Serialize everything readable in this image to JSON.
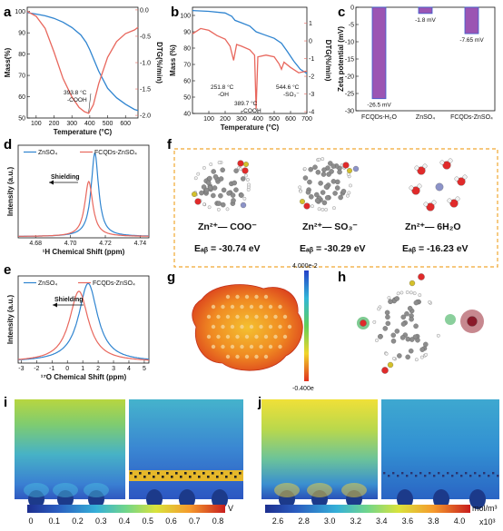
{
  "panels": {
    "a": "a",
    "b": "b",
    "c": "c",
    "d": "d",
    "e": "e",
    "f": "f",
    "g": "g",
    "h": "h",
    "i": "i",
    "j": "j"
  },
  "colors": {
    "blue": "#2f84d0",
    "red": "#e8675d",
    "purple": "#9b55b3",
    "orange_dash": "#f0a830"
  },
  "chart_data": [
    {
      "id": "a",
      "type": "line",
      "xlabel": "Temperature (°C)",
      "ylabel": "Mass(%)",
      "y2label": "DTG(%/min)",
      "xlim": [
        50,
        670
      ],
      "ylim": [
        50,
        102
      ],
      "y2lim": [
        -2.05,
        0.05
      ],
      "xticks": [
        100,
        200,
        300,
        400,
        500,
        600
      ],
      "yticks": [
        50,
        60,
        70,
        80,
        90,
        100
      ],
      "y2ticks": [
        0.0,
        -0.5,
        -1.0,
        -1.5,
        -2.0
      ],
      "y2ticklabels": [
        "0.0",
        "-0.5",
        "-1.0",
        "-1.5",
        "-2.0"
      ],
      "series": [
        {
          "axis": "left",
          "color": "#2f84d0",
          "x": [
            50,
            100,
            150,
            200,
            250,
            300,
            350,
            380,
            400,
            450,
            500,
            550,
            600,
            650,
            670
          ],
          "y": [
            99.5,
            98.8,
            98.0,
            96.8,
            95.0,
            92.5,
            89.0,
            85.5,
            82.0,
            72.0,
            64.0,
            59.5,
            56.5,
            54.0,
            53.5
          ]
        },
        {
          "axis": "right",
          "color": "#e8675d",
          "x": [
            50,
            100,
            150,
            200,
            250,
            300,
            340,
            370,
            393.8,
            420,
            450,
            500,
            550,
            600,
            650,
            670
          ],
          "y": [
            -0.03,
            -0.12,
            -0.35,
            -0.8,
            -1.3,
            -1.65,
            -1.85,
            -1.93,
            -1.96,
            -1.8,
            -1.4,
            -0.9,
            -0.6,
            -0.45,
            -0.38,
            -0.33
          ]
        }
      ],
      "annotations": [
        {
          "text1": "393.8 °C",
          "text2": "-COOH"
        }
      ]
    },
    {
      "id": "b",
      "type": "line",
      "xlabel": "Temperature (°C)",
      "ylabel": "Mass (%)",
      "y2label": "DTG(%/min)",
      "xlim": [
        0,
        700
      ],
      "ylim": [
        40,
        105
      ],
      "y2lim": [
        -4.1,
        1.9
      ],
      "xticks": [
        100,
        200,
        300,
        400,
        500,
        600,
        700
      ],
      "yticks": [
        40,
        50,
        60,
        70,
        80,
        90,
        100
      ],
      "y2ticks": [
        1,
        0,
        -1,
        -2,
        -3,
        -4
      ],
      "y2ticklabels": [
        "1",
        "0",
        "-1",
        "-2",
        "-3",
        "-4"
      ],
      "series": [
        {
          "axis": "left",
          "color": "#2f84d0",
          "x": [
            0,
            100,
            200,
            240,
            260,
            300,
            350,
            389.7,
            430,
            500,
            544.6,
            580,
            620,
            660,
            700
          ],
          "y": [
            103,
            102.5,
            101.5,
            99.5,
            97.0,
            95.5,
            93.5,
            90.0,
            88.5,
            86.0,
            83.0,
            78.0,
            72.0,
            67.0,
            64.5
          ]
        },
        {
          "axis": "right",
          "color": "#e8675d",
          "x": [
            0,
            50,
            100,
            150,
            200,
            230,
            251.8,
            270,
            300,
            350,
            380,
            389.7,
            400,
            450,
            500,
            530,
            544.6,
            560,
            600,
            650,
            700
          ],
          "y": [
            0.4,
            0.7,
            0.6,
            0.3,
            0.1,
            -0.3,
            -1.1,
            -0.2,
            -0.3,
            -0.5,
            -0.8,
            -3.85,
            -0.9,
            -0.8,
            -0.9,
            -1.3,
            -1.6,
            -1.2,
            -1.5,
            -1.8,
            -1.7
          ]
        }
      ],
      "annotations": [
        {
          "text1": "251.8 °C",
          "text2": "-OH"
        },
        {
          "text1": "389.7 °C",
          "text2": "-COOH"
        },
        {
          "text1": "544.6 °C",
          "text2": "-SO₃⁻"
        }
      ]
    },
    {
      "id": "c",
      "type": "bar",
      "ylabel": "Zeta potential (mV)",
      "categories": [
        "FCQDs-H₂O",
        "ZnSO₄",
        "FCQDs-ZnSO₄"
      ],
      "values": [
        -26.5,
        -1.8,
        -7.65
      ],
      "value_labels": [
        "-26.5 mV",
        "-1.8 mV",
        "-7.65 mV"
      ],
      "ylim": [
        -30,
        0
      ],
      "yticks": [
        0,
        -5,
        -10,
        -15,
        -20,
        -25,
        -30
      ],
      "color": "#9b55b3"
    },
    {
      "id": "d",
      "type": "line",
      "xlabel": "¹H Chemical Shift (ppm)",
      "ylabel": "Intensity (a.u.)",
      "xlim": [
        4.67,
        4.745
      ],
      "xticks": [
        4.68,
        4.7,
        4.72,
        4.74
      ],
      "xticklabels": [
        "4.68",
        "4.70",
        "4.72",
        "4.74"
      ],
      "legend": [
        "ZnSO₄",
        "FCQDs-ZnSO₄"
      ],
      "arrow_label": "Shielding",
      "series": [
        {
          "name": "ZnSO₄",
          "color": "#2f84d0",
          "center": 4.714,
          "height": 1.0,
          "width": 0.0026
        },
        {
          "name": "FCQDs-ZnSO₄",
          "color": "#e8675d",
          "center": 4.7105,
          "height": 0.66,
          "width": 0.0028
        }
      ]
    },
    {
      "id": "e",
      "type": "line",
      "xlabel": "¹⁷O Chemical Shift (ppm)",
      "ylabel": "Intensity (a.u.)",
      "xlim": [
        -3.2,
        5.3
      ],
      "xticks": [
        -3,
        -2,
        -1,
        0,
        1,
        2,
        3,
        4,
        5
      ],
      "legend": [
        "ZnSO₄",
        "FCQDs-ZnSO₄"
      ],
      "arrow_label": "Shielding",
      "series": [
        {
          "name": "ZnSO₄",
          "color": "#2f84d0",
          "center": 1.35,
          "height": 1.0,
          "width": 0.75
        },
        {
          "name": "FCQDs-ZnSO₄",
          "color": "#e8675d",
          "center": 0.75,
          "height": 0.9,
          "width": 0.75
        }
      ]
    },
    {
      "id": "i",
      "type": "heatmap",
      "colorbar_ticks": [
        "0",
        "0.1",
        "0.2",
        "0.3",
        "0.4",
        "0.5",
        "0.6",
        "0.7",
        "0.8"
      ],
      "colorbar_unit": "V"
    },
    {
      "id": "j",
      "type": "heatmap",
      "colorbar_ticks": [
        "2.6",
        "2.8",
        "3.0",
        "3.2",
        "3.4",
        "3.6",
        "3.8",
        "4.0"
      ],
      "colorbar_unit": "mol/m³",
      "colorbar_multiplier": "x10³"
    }
  ],
  "panel_f": {
    "captions": [
      {
        "ion": "Zn²⁺— COO⁻",
        "energy": "Eₐᵦ = -30.74 eV"
      },
      {
        "ion": "Zn²⁺— SO₃⁻",
        "energy": "Eₐᵦ = -30.29 eV"
      },
      {
        "ion": "Zn²⁺— 6H₂O",
        "energy": "Eₐᵦ = -16.23 eV"
      }
    ]
  },
  "panel_g": {
    "colorbar_max": "4.000e-2",
    "colorbar_min": "-0.400e"
  }
}
